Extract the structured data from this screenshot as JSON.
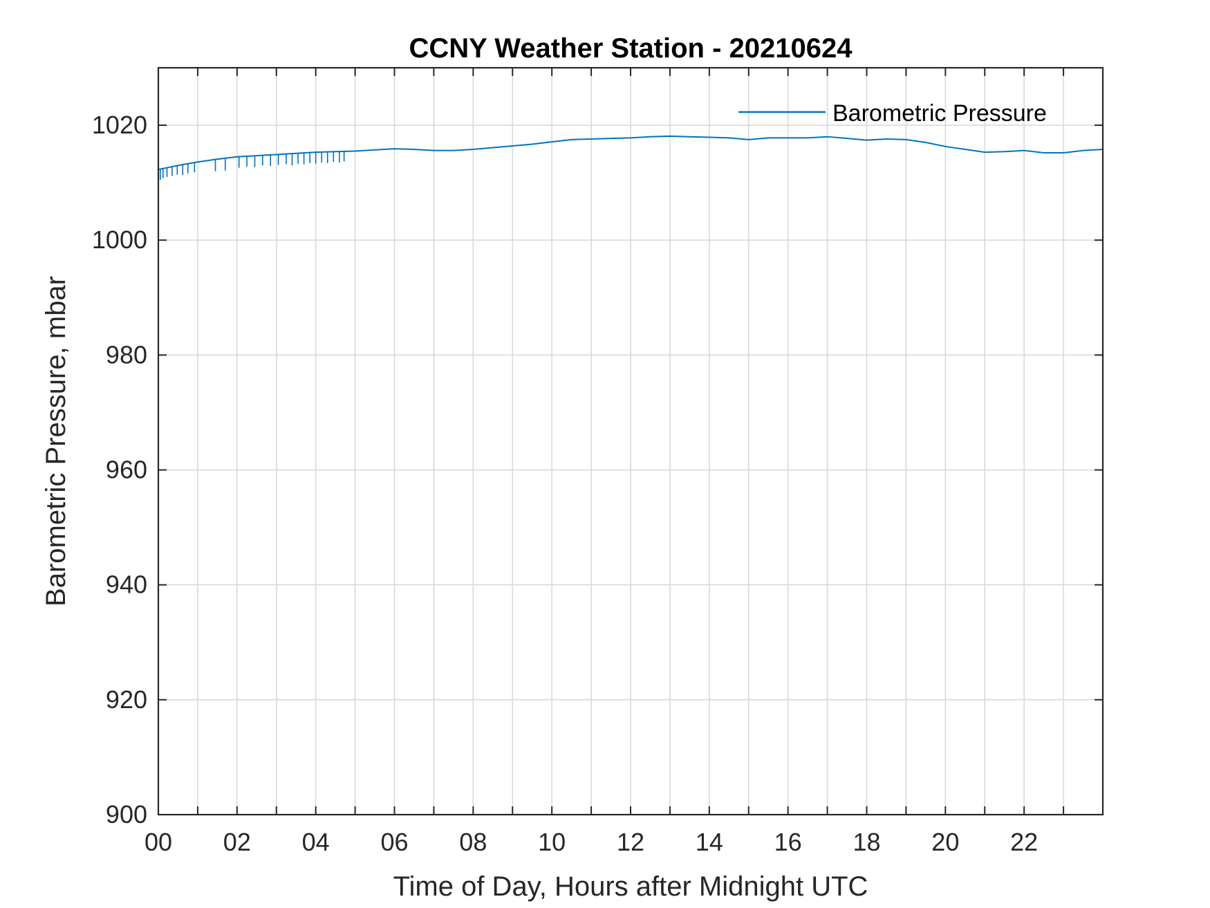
{
  "chart_data": {
    "type": "line",
    "title": "CCNY Weather Station - 20210624",
    "xlabel": "Time of Day, Hours after Midnight UTC",
    "ylabel": "Barometric Pressure, mbar",
    "xlim": [
      0,
      24
    ],
    "ylim": [
      900,
      1030
    ],
    "xticks": [
      0,
      2,
      4,
      6,
      8,
      10,
      12,
      14,
      16,
      18,
      20,
      22
    ],
    "xtick_labels": [
      "00",
      "02",
      "04",
      "06",
      "08",
      "10",
      "12",
      "14",
      "16",
      "18",
      "20",
      "22"
    ],
    "yticks": [
      900,
      920,
      940,
      960,
      980,
      1000,
      1020
    ],
    "ytick_labels": [
      "900",
      "920",
      "940",
      "960",
      "980",
      "1000",
      "1020"
    ],
    "grid": true,
    "legend_position": "top-right",
    "series": [
      {
        "name": "Barometric Pressure",
        "color": "#0072BD",
        "x": [
          0,
          0.5,
          1,
          1.5,
          2,
          2.5,
          3,
          3.5,
          4,
          4.5,
          5,
          5.5,
          6,
          6.5,
          7,
          7.5,
          8,
          8.5,
          9,
          9.5,
          10,
          10.5,
          11,
          11.5,
          12,
          12.5,
          13,
          13.5,
          14,
          14.5,
          15,
          15.5,
          16,
          16.5,
          17,
          17.5,
          18,
          18.5,
          19,
          19.5,
          20,
          20.5,
          21,
          21.5,
          22,
          22.5,
          23,
          23.5,
          24
        ],
        "y": [
          1012.3,
          1013.0,
          1013.6,
          1014.1,
          1014.5,
          1014.7,
          1014.9,
          1015.1,
          1015.3,
          1015.4,
          1015.5,
          1015.7,
          1015.9,
          1015.8,
          1015.6,
          1015.6,
          1015.8,
          1016.1,
          1016.4,
          1016.7,
          1017.1,
          1017.5,
          1017.6,
          1017.7,
          1017.8,
          1018.0,
          1018.1,
          1018.0,
          1017.9,
          1017.8,
          1017.5,
          1017.8,
          1017.8,
          1017.8,
          1018.0,
          1017.7,
          1017.4,
          1017.6,
          1017.5,
          1017.0,
          1016.3,
          1015.8,
          1015.3,
          1015.4,
          1015.6,
          1015.2,
          1015.2,
          1015.6,
          1015.8
        ],
        "dropouts": [
          {
            "x": 0.05,
            "low": 1010.5
          },
          {
            "x": 0.12,
            "low": 1010.8
          },
          {
            "x": 0.22,
            "low": 1011.0
          },
          {
            "x": 0.35,
            "low": 1011.2
          },
          {
            "x": 0.48,
            "low": 1011.4
          },
          {
            "x": 0.62,
            "low": 1011.3
          },
          {
            "x": 0.75,
            "low": 1011.6
          },
          {
            "x": 0.92,
            "low": 1011.8
          },
          {
            "x": 1.45,
            "low": 1012.0
          },
          {
            "x": 1.7,
            "low": 1012.1
          },
          {
            "x": 2.05,
            "low": 1012.6
          },
          {
            "x": 2.25,
            "low": 1012.8
          },
          {
            "x": 2.45,
            "low": 1012.7
          },
          {
            "x": 2.65,
            "low": 1013.0
          },
          {
            "x": 2.85,
            "low": 1012.9
          },
          {
            "x": 3.05,
            "low": 1013.1
          },
          {
            "x": 3.25,
            "low": 1013.2
          },
          {
            "x": 3.4,
            "low": 1013.0
          },
          {
            "x": 3.55,
            "low": 1013.3
          },
          {
            "x": 3.7,
            "low": 1013.2
          },
          {
            "x": 3.85,
            "low": 1013.4
          },
          {
            "x": 4.0,
            "low": 1013.3
          },
          {
            "x": 4.15,
            "low": 1013.5
          },
          {
            "x": 4.3,
            "low": 1013.4
          },
          {
            "x": 4.45,
            "low": 1013.6
          },
          {
            "x": 4.6,
            "low": 1013.5
          },
          {
            "x": 4.72,
            "low": 1013.7
          }
        ]
      }
    ]
  }
}
